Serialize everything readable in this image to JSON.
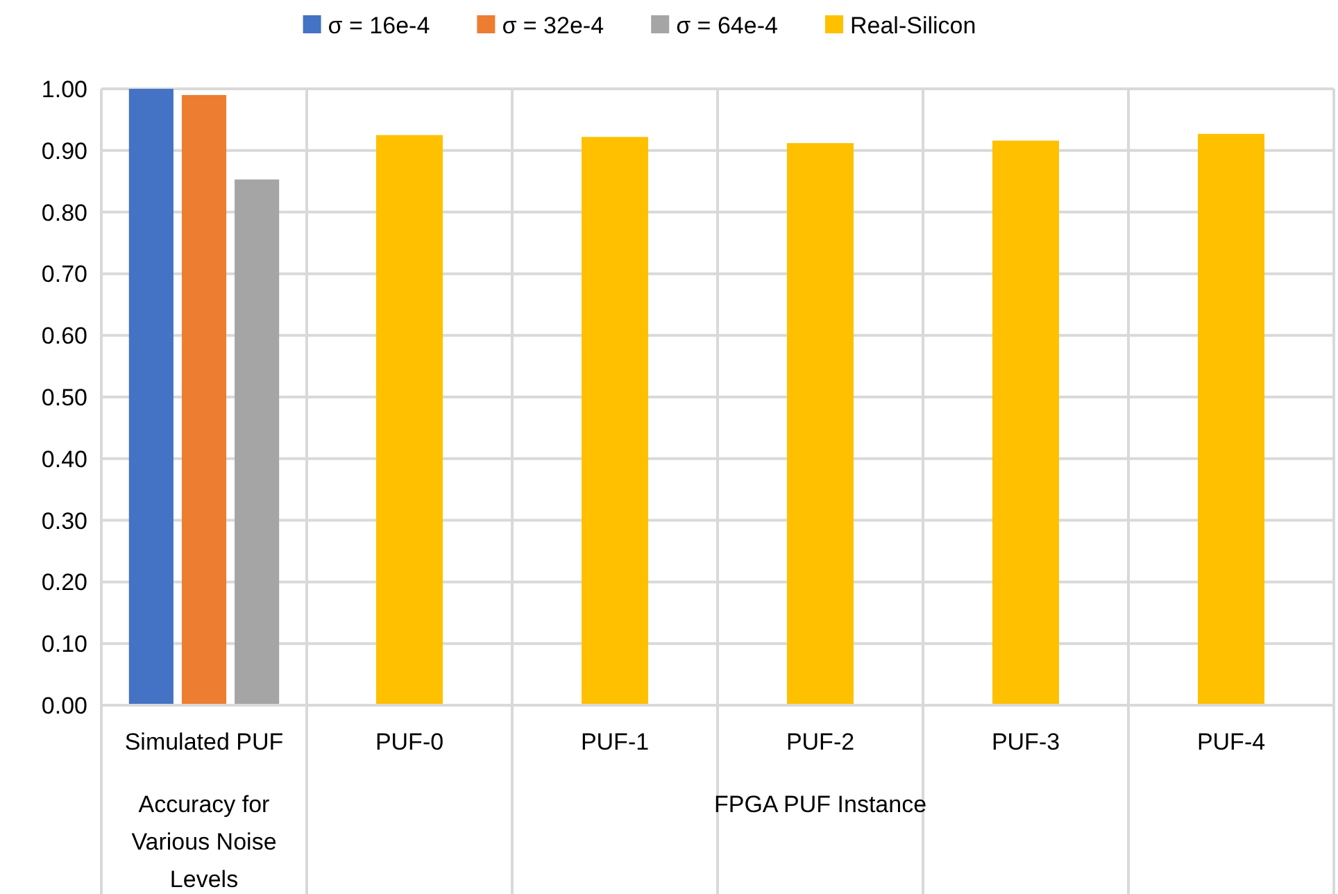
{
  "chart_data": {
    "type": "bar",
    "categories": [
      "Simulated PUF",
      "PUF-0",
      "PUF-1",
      "PUF-2",
      "PUF-3",
      "PUF-4"
    ],
    "series": [
      {
        "name": "σ = 16e-4",
        "color": "#4472c4",
        "values": [
          1.0,
          null,
          null,
          null,
          null,
          null
        ]
      },
      {
        "name": "σ = 32e-4",
        "color": "#ed7d31",
        "values": [
          0.99,
          null,
          null,
          null,
          null,
          null
        ]
      },
      {
        "name": "σ = 64e-4",
        "color": "#a5a5a5",
        "values": [
          0.853,
          null,
          null,
          null,
          null,
          null
        ]
      },
      {
        "name": "Real-Silicon",
        "color": "#ffc000",
        "values": [
          null,
          0.925,
          0.922,
          0.912,
          0.916,
          0.927
        ]
      }
    ],
    "ylim": [
      0,
      1
    ],
    "yticks": [
      {
        "value": 0,
        "label": "0.00"
      },
      {
        "value": 0.1,
        "label": "0.10"
      },
      {
        "value": 0.2,
        "label": "0.20"
      },
      {
        "value": 0.3,
        "label": "0.30"
      },
      {
        "value": 0.4,
        "label": "0.40"
      },
      {
        "value": 0.5,
        "label": "0.50"
      },
      {
        "value": 0.6,
        "label": "0.60"
      },
      {
        "value": 0.7,
        "label": "0.70"
      },
      {
        "value": 0.8,
        "label": "0.80"
      },
      {
        "value": 0.9,
        "label": "0.90"
      },
      {
        "value": 1,
        "label": "1.00"
      }
    ],
    "grid": true,
    "legend": "top",
    "annotations": [
      "Accuracy for Various Noise Levels",
      "FPGA PUF Instance"
    ]
  }
}
